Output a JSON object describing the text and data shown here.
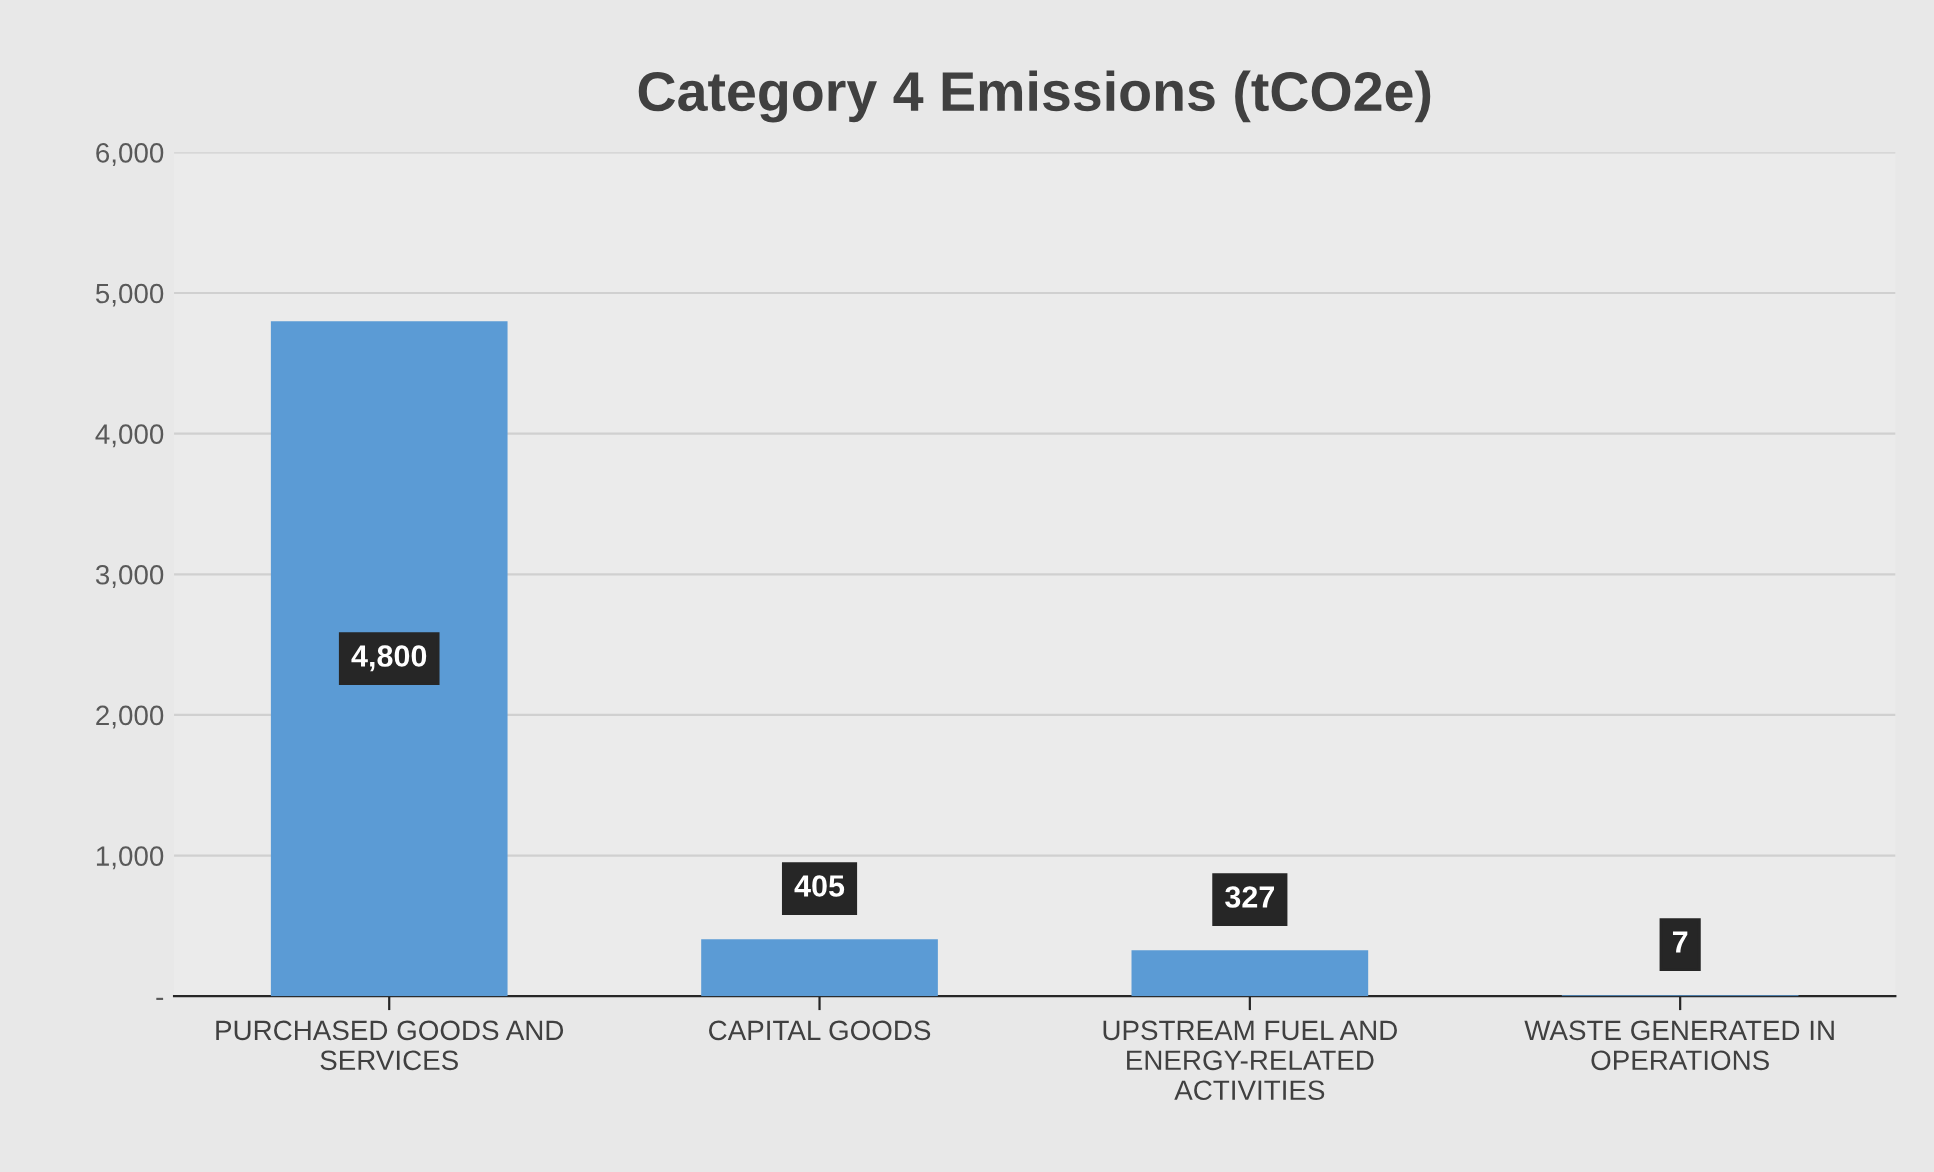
{
  "chart_data": {
    "type": "bar",
    "title": "Category 4 Emissions (tCO2e)",
    "categories": [
      "PURCHASED GOODS AND SERVICES",
      "CAPITAL GOODS",
      "UPSTREAM FUEL AND ENERGY-RELATED ACTIVITIES",
      "WASTE GENERATED IN OPERATIONS"
    ],
    "values": [
      4800,
      405,
      327,
      7
    ],
    "value_labels": [
      "4,800",
      "405",
      "327",
      "7"
    ],
    "color": "#5b9bd5",
    "ylim": [
      0,
      6000
    ],
    "yticks": [
      {
        "value": 0,
        "label": "-"
      },
      {
        "value": 1000,
        "label": "1,000"
      },
      {
        "value": 2000,
        "label": "2,000"
      },
      {
        "value": 3000,
        "label": "3,000"
      },
      {
        "value": 4000,
        "label": "4,000"
      },
      {
        "value": 5000,
        "label": "5,000"
      },
      {
        "value": 6000,
        "label": "6,000"
      }
    ],
    "grid": "y",
    "legend": false
  }
}
